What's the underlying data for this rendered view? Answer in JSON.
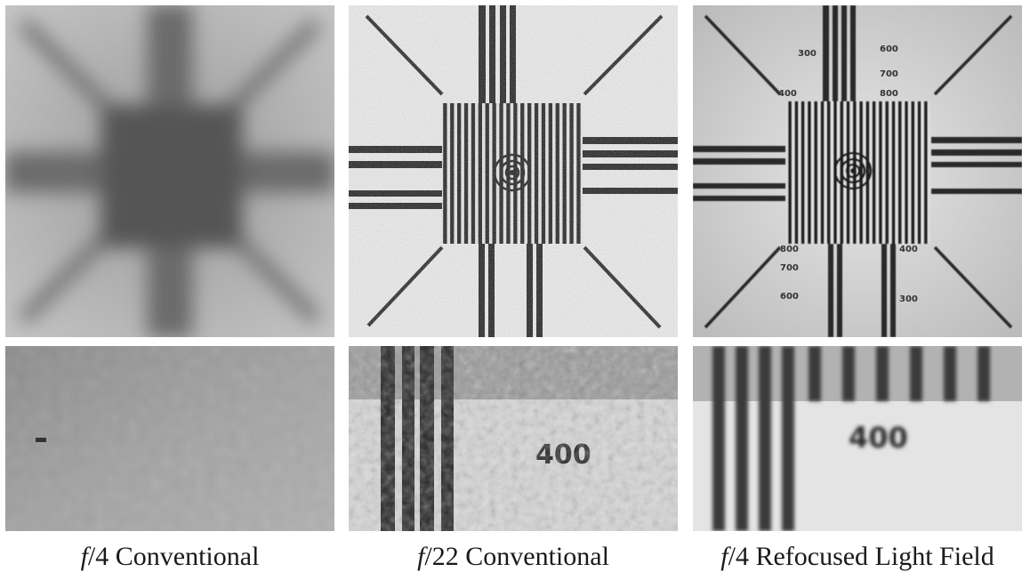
{
  "captions": [
    {
      "f": "f",
      "slash": "/",
      "num": "4",
      "label": "Conventional"
    },
    {
      "f": "f",
      "slash": "/",
      "num": "22",
      "label": "Conventional"
    },
    {
      "f": "f",
      "slash": "/",
      "num": "4",
      "label": "Refocused Light Field"
    }
  ],
  "chart_labels": {
    "top": [
      "300",
      "600",
      "700",
      "800",
      "400"
    ],
    "left": [
      "600",
      "700",
      "800"
    ],
    "right": [
      "400",
      "300"
    ],
    "bottom_left": [
      "800",
      "700",
      "600"
    ],
    "bottom_right": [
      "400",
      "300"
    ]
  },
  "closeup_digits": "400",
  "colors": {
    "background": "#ffffff",
    "caption": "#1a1a1a"
  }
}
